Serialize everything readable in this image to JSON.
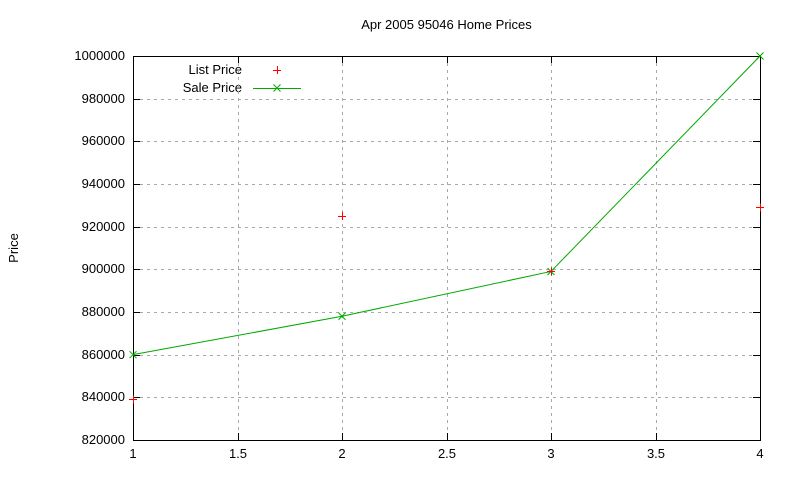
{
  "chart_data": {
    "type": "line",
    "title": "Apr 2005 95046 Home Prices",
    "xlabel": "",
    "ylabel": "Price",
    "xlim": [
      1,
      4
    ],
    "ylim": [
      820000,
      1000000
    ],
    "x_ticks": [
      1,
      1.5,
      2,
      2.5,
      3,
      3.5,
      4
    ],
    "x_tick_labels": [
      "1",
      "1.5",
      "2",
      "2.5",
      "3",
      "3.5",
      "4"
    ],
    "y_ticks": [
      1000000,
      980000,
      960000,
      940000,
      920000,
      900000,
      880000,
      860000,
      840000,
      820000
    ],
    "y_tick_labels": [
      "1000000",
      "980000",
      "960000",
      "940000",
      "920000",
      "900000",
      "880000",
      "860000",
      "840000",
      "820000"
    ],
    "grid": true,
    "legend_position": "top-left-inside",
    "x": [
      1,
      2,
      3,
      4
    ],
    "series": [
      {
        "name": "List Price",
        "style": "points",
        "marker": "plus",
        "color": "#ff0000",
        "values": [
          839000,
          925000,
          899000,
          929000
        ]
      },
      {
        "name": "Sale Price",
        "style": "linespoints",
        "marker": "x",
        "color": "#00a800",
        "values": [
          860000,
          878000,
          899000,
          1000000
        ]
      }
    ]
  },
  "colors": {
    "background": "#ffffff",
    "border": "#000000",
    "grid": "#a8a8a8",
    "text": "#000000"
  }
}
